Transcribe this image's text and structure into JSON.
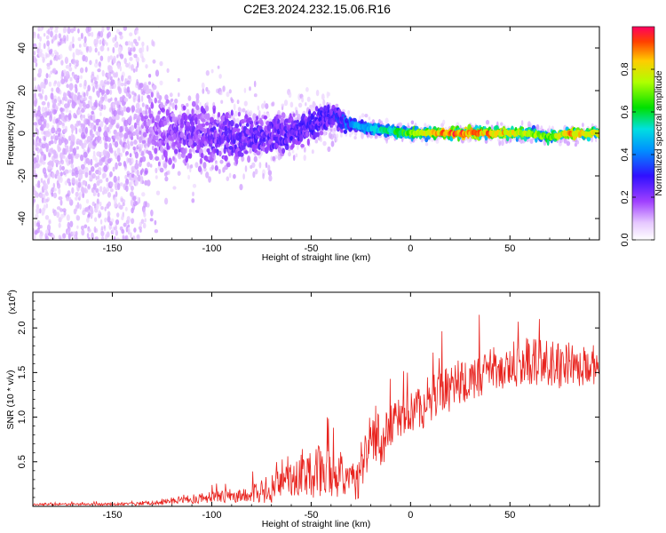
{
  "title": "C2E3.2024.232.15.06.R16",
  "chart_data": [
    {
      "type": "heatmap",
      "name": "spectrogram",
      "xlabel": "Height of straight line (km)",
      "ylabel": "Frequency (Hz)",
      "xlim": [
        -190,
        95
      ],
      "ylim": [
        -50,
        50
      ],
      "xticks": [
        -150,
        -100,
        -50,
        0,
        50
      ],
      "xtick_labels": [
        "-150",
        "-100",
        "-50",
        "0",
        "50"
      ],
      "yticks": [
        -40,
        -20,
        0,
        20,
        40
      ],
      "ytick_labels": [
        "-40",
        "-20",
        "0",
        "20",
        "40"
      ],
      "colorbar": {
        "label": "Normalized spectral amplitude",
        "range": [
          0,
          1
        ],
        "ticks": [
          0.0,
          0.2,
          0.4,
          0.6,
          0.8
        ],
        "tick_labels": [
          "0.0",
          "0.2",
          "0.4",
          "0.6",
          "0.8"
        ],
        "colormap": "rainbow (white-violet-blue-cyan-green-yellow-red)"
      },
      "description_points": [
        {
          "x": -180,
          "freq_center": 0,
          "freq_spread": 50,
          "amplitude": 0.12
        },
        {
          "x": -140,
          "freq_center": 0,
          "freq_spread": 45,
          "amplitude": 0.14
        },
        {
          "x": -120,
          "freq_center": 0,
          "freq_spread": 18,
          "amplitude": 0.22
        },
        {
          "x": -100,
          "freq_center": -2,
          "freq_spread": 18,
          "amplitude": 0.26
        },
        {
          "x": -80,
          "freq_center": -2,
          "freq_spread": 14,
          "amplitude": 0.28
        },
        {
          "x": -60,
          "freq_center": 0,
          "freq_spread": 10,
          "amplitude": 0.3
        },
        {
          "x": -40,
          "freq_center": 8,
          "freq_spread": 8,
          "amplitude": 0.32
        },
        {
          "x": -30,
          "freq_center": 4,
          "freq_spread": 4,
          "amplitude": 0.45
        },
        {
          "x": -20,
          "freq_center": 2,
          "freq_spread": 3,
          "amplitude": 0.5
        },
        {
          "x": 0,
          "freq_center": 0,
          "freq_spread": 3,
          "amplitude": 0.7
        },
        {
          "x": 20,
          "freq_center": 0,
          "freq_spread": 3,
          "amplitude": 0.95
        },
        {
          "x": 40,
          "freq_center": 0,
          "freq_spread": 3,
          "amplitude": 0.9
        },
        {
          "x": 60,
          "freq_center": 0,
          "freq_spread": 3,
          "amplitude": 0.75
        },
        {
          "x": 70,
          "freq_center": -2,
          "freq_spread": 3,
          "amplitude": 0.7
        },
        {
          "x": 80,
          "freq_center": 0,
          "freq_spread": 3,
          "amplitude": 0.9
        },
        {
          "x": 95,
          "freq_center": 0,
          "freq_spread": 3,
          "amplitude": 0.8
        }
      ]
    },
    {
      "type": "line",
      "name": "snr",
      "xlabel": "Height of straight line (km)",
      "ylabel": "SNR (10 * v/v)",
      "yunit_multiplier": "(x10",
      "yunit_exponent": "4",
      "yunit_close": ")",
      "color": "#e8231e",
      "xlim": [
        -190,
        95
      ],
      "ylim": [
        0,
        2.4
      ],
      "xticks": [
        -150,
        -100,
        -50,
        0,
        50
      ],
      "xtick_labels": [
        "-150",
        "-100",
        "-50",
        "0",
        "50"
      ],
      "yticks": [
        0.5,
        1.0,
        1.5,
        2.0
      ],
      "ytick_labels": [
        "0.5",
        "1.0",
        "1.5",
        "2.0"
      ],
      "envelope": {
        "x": [
          -190,
          -160,
          -140,
          -130,
          -120,
          -100,
          -80,
          -70,
          -60,
          -50,
          -45,
          -40,
          -30,
          -26,
          -22,
          -18,
          -14,
          -10,
          -5,
          0,
          5,
          10,
          15,
          20,
          30,
          40,
          50,
          60,
          70,
          80,
          95
        ],
        "base": [
          0.02,
          0.02,
          0.02,
          0.03,
          0.05,
          0.08,
          0.11,
          0.15,
          0.25,
          0.3,
          0.28,
          0.3,
          0.25,
          0.2,
          0.55,
          0.75,
          0.6,
          0.85,
          0.95,
          1.0,
          1.05,
          1.1,
          1.15,
          1.25,
          1.35,
          1.45,
          1.5,
          1.55,
          1.5,
          1.5,
          1.5
        ],
        "amp": [
          0.015,
          0.015,
          0.02,
          0.03,
          0.05,
          0.08,
          0.12,
          0.2,
          0.25,
          0.35,
          0.4,
          0.35,
          0.3,
          0.3,
          0.35,
          0.4,
          0.35,
          0.3,
          0.3,
          0.3,
          0.35,
          0.35,
          0.35,
          0.35,
          0.3,
          0.3,
          0.3,
          0.35,
          0.35,
          0.3,
          0.25
        ]
      }
    }
  ]
}
